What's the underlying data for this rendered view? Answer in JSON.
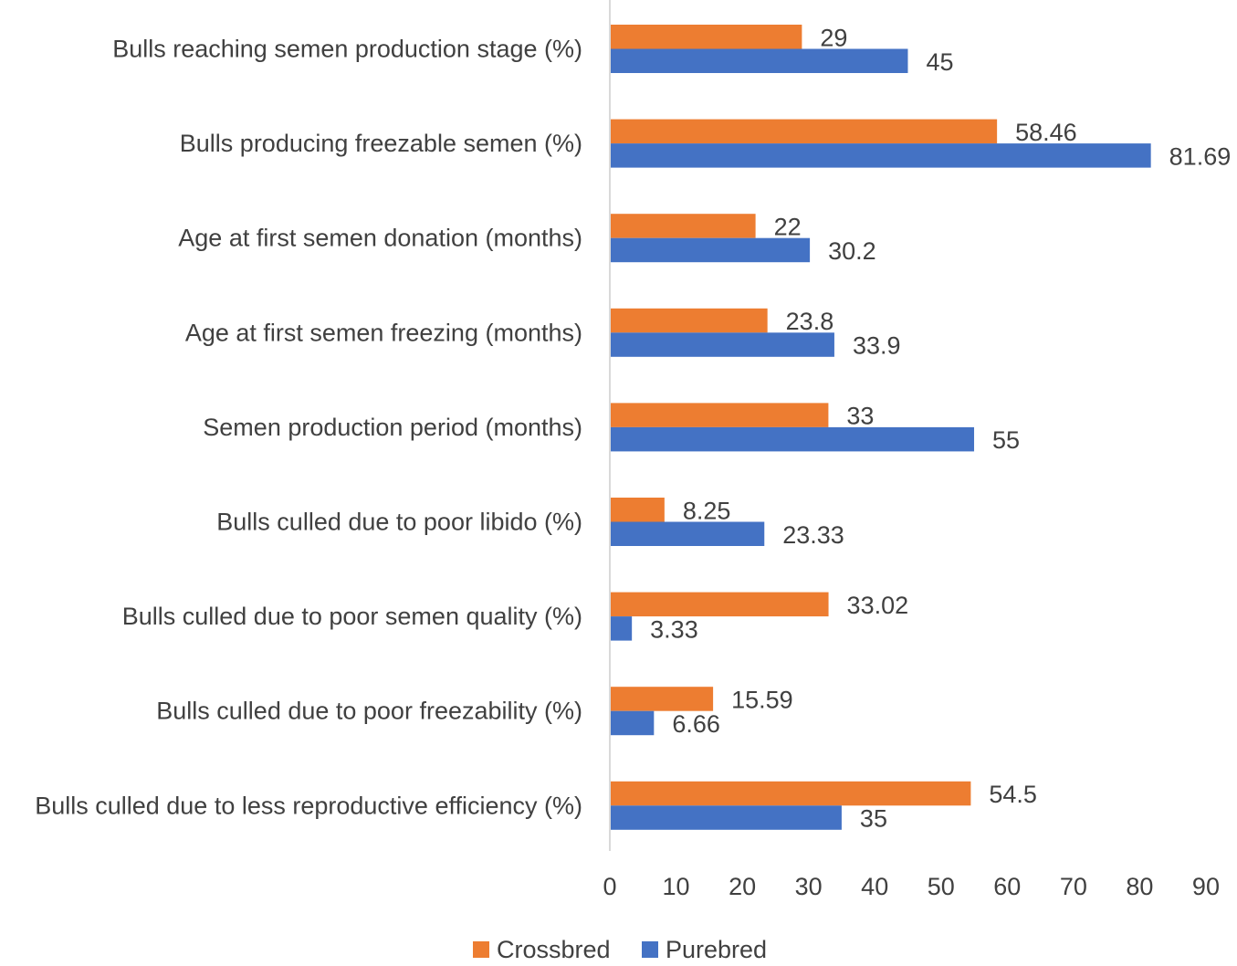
{
  "chart_data": {
    "type": "bar",
    "orientation": "horizontal",
    "title": "",
    "xlabel": "",
    "ylabel": "",
    "xlim": [
      0,
      90
    ],
    "x_ticks": [
      0,
      10,
      20,
      30,
      40,
      50,
      60,
      70,
      80,
      90
    ],
    "x_tick_labels": [
      "0",
      "10",
      "20",
      "30",
      "40",
      "50",
      "60",
      "70",
      "80",
      "90"
    ],
    "grid": false,
    "legend_position": "bottom",
    "categories": [
      "Bulls reaching semen production stage (%)",
      "Bulls producing freezable semen (%)",
      "Age at first semen donation (months)",
      "Age at first semen freezing (months)",
      "Semen production period (months)",
      "Bulls culled due to poor libido (%)",
      "Bulls culled due to poor semen quality (%)",
      "Bulls culled due to poor freezability (%)",
      "Bulls culled due to less reproductive efficiency (%)"
    ],
    "series": [
      {
        "name": "Crossbred",
        "color": "#ED7D31",
        "values": [
          29,
          58.46,
          22,
          23.8,
          33,
          8.25,
          33.02,
          15.59,
          54.5
        ],
        "labels": [
          "29",
          "58.46",
          "22",
          "23.8",
          "33",
          "8.25",
          "33.02",
          "15.59",
          "54.5"
        ]
      },
      {
        "name": "Purebred",
        "color": "#4472C4",
        "values": [
          45,
          81.69,
          30.2,
          33.9,
          55,
          23.33,
          3.33,
          6.66,
          35
        ],
        "labels": [
          "45",
          "81.69",
          "30.2",
          "33.9",
          "55",
          "23.33",
          "3.33",
          "6.66",
          "35"
        ]
      }
    ],
    "axis_color": "#D9D9D9"
  }
}
